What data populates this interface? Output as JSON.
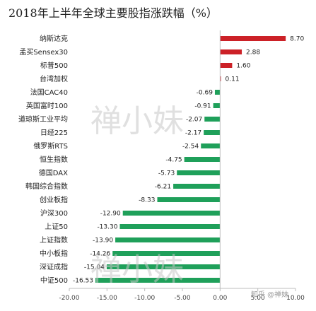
{
  "chart_data": {
    "type": "bar",
    "orientation": "horizontal",
    "title": "2018年上半年全球主要股指涨跌幅（%）",
    "categories": [
      "纳斯达克",
      "孟买Sensex30",
      "标普500",
      "台湾加权",
      "法国CAC40",
      "英国富时100",
      "道琼斯工业平均",
      "日经225",
      "俄罗斯RTS",
      "恒生指数",
      "德国DAX",
      "韩国综合指数",
      "创业板指",
      "沪深300",
      "上证50",
      "上证指数",
      "中小板指",
      "深证成指",
      "中证500"
    ],
    "values": [
      8.7,
      2.88,
      1.6,
      0.11,
      -0.69,
      -0.91,
      -2.07,
      -2.17,
      -2.54,
      -4.75,
      -5.73,
      -6.21,
      -8.33,
      -12.9,
      -13.3,
      -13.9,
      -14.26,
      -15.04,
      -16.53
    ],
    "value_labels": [
      "8.70",
      "2.88",
      "1.60",
      "0.11",
      "-0.69",
      "-0.91",
      "-2.07",
      "-2.17",
      "-2.54",
      "-4.75",
      "-5.73",
      "-6.21",
      "-8.33",
      "-12.90",
      "-13.30",
      "-13.90",
      "-14.26",
      "-15.04",
      "-16.53"
    ],
    "xlim": [
      -20,
      10
    ],
    "xticks": [
      -20,
      -15,
      -10,
      -5,
      0,
      5,
      10
    ],
    "xtick_labels": [
      "-20.00",
      "-15.00",
      "-10.00",
      "-5.00",
      "0.00",
      "5.00",
      "10.00"
    ],
    "grid": false,
    "legend": "none",
    "colors": {
      "positive": "#cc2127",
      "negative": "#1fa05a",
      "axis": "#bdbdbd"
    }
  },
  "watermark": {
    "text": "禅小妹",
    "credit": "知乎 @禅妹"
  }
}
